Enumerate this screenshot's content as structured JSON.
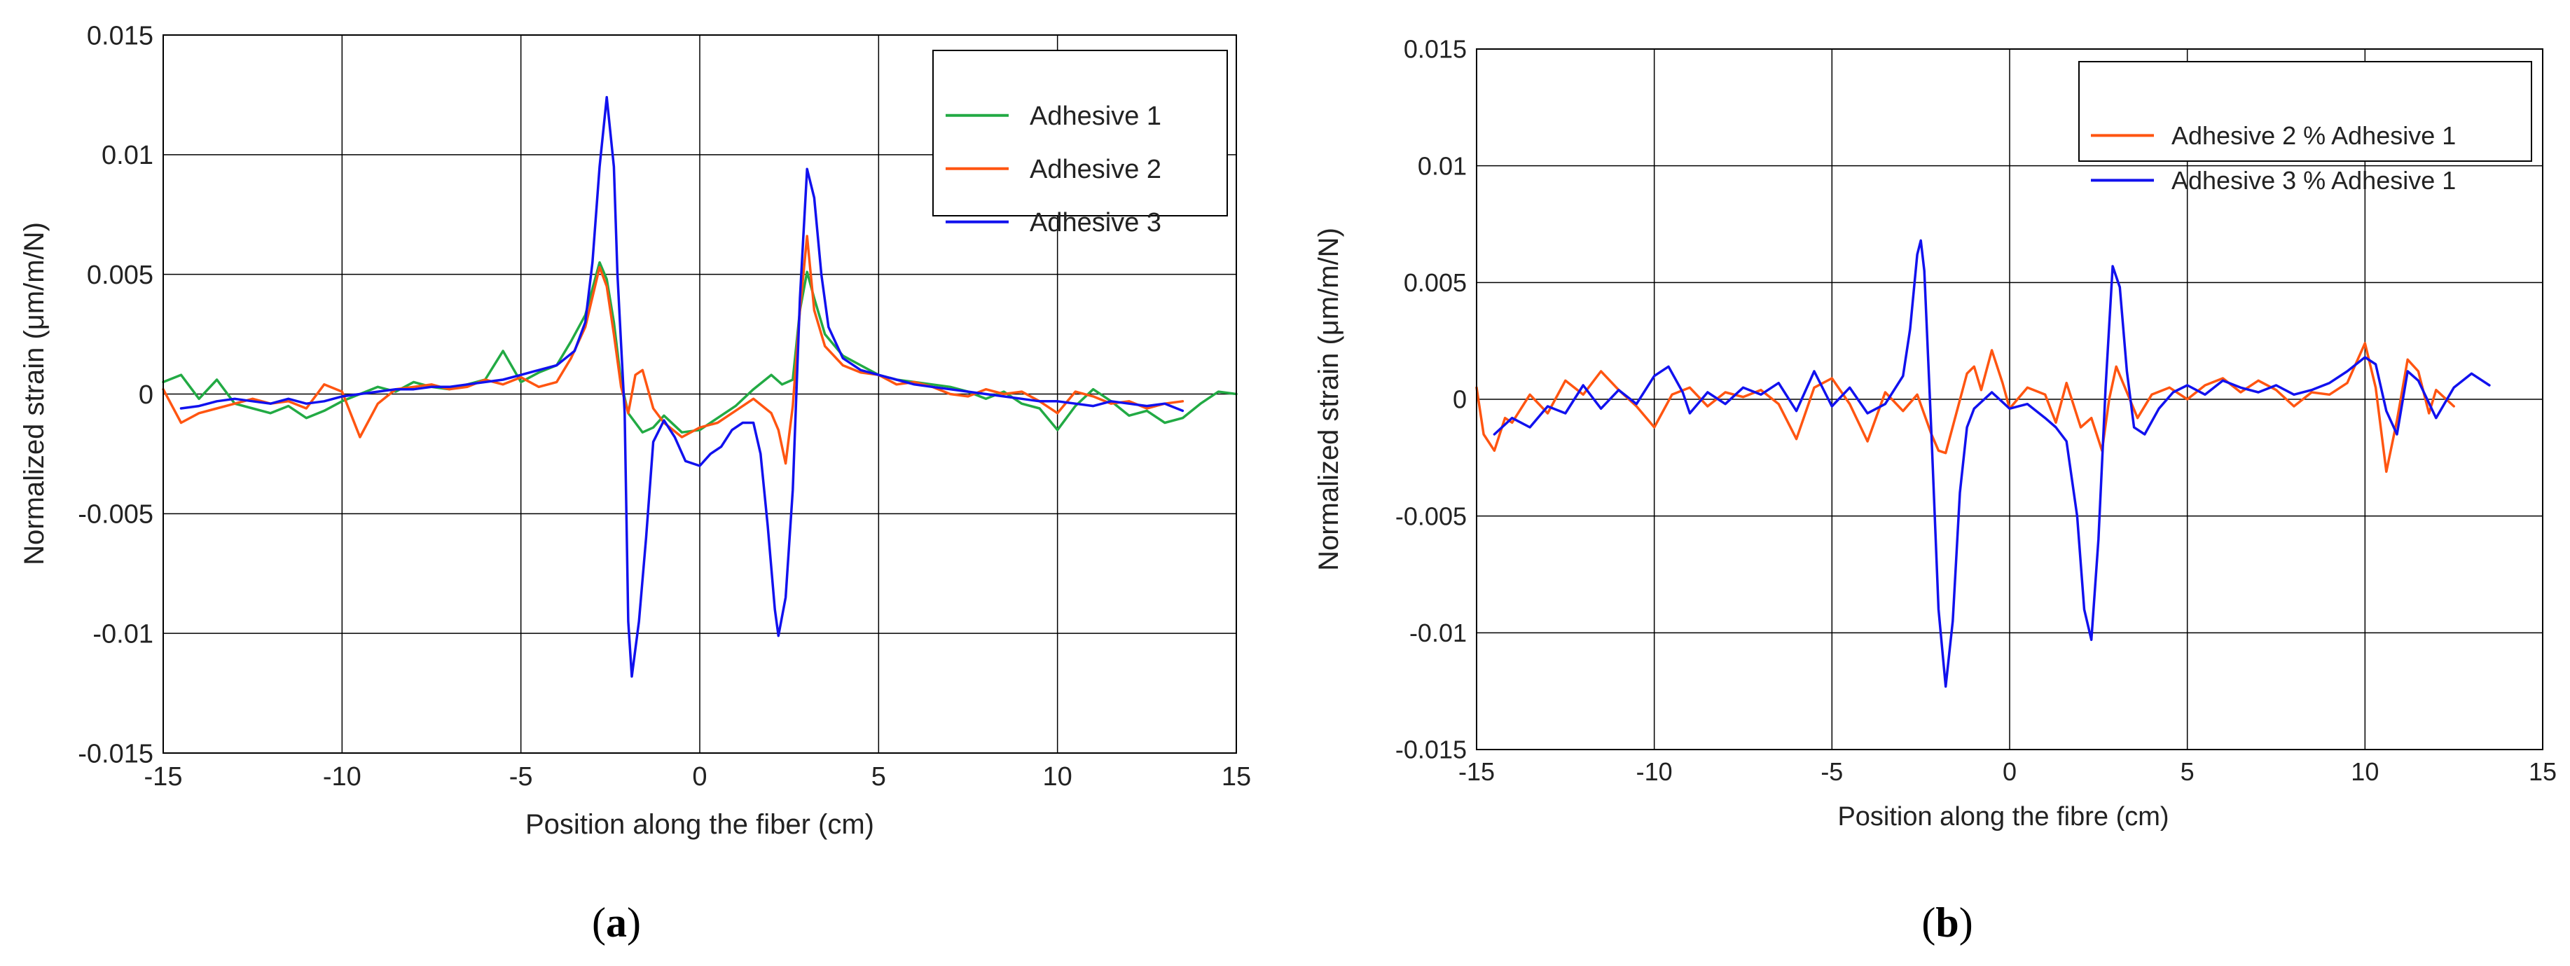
{
  "chart_data": [
    {
      "type": "line",
      "caption_letter": "a",
      "xlabel": "Position along the fiber (cm)",
      "ylabel": "Normalized strain (μm/m/N)",
      "xlim": [
        -15,
        15
      ],
      "ylim": [
        -0.015,
        0.015
      ],
      "xticks": [
        -15,
        -10,
        -5,
        0,
        5,
        10,
        15
      ],
      "xtick_labels": [
        "-15",
        "-10",
        "-5",
        "0",
        "5",
        "10",
        "15"
      ],
      "yticks": [
        0.015,
        0.01,
        0.005,
        0,
        -0.005,
        -0.01,
        -0.015
      ],
      "ytick_labels": [
        "0.015",
        "0.01",
        "0.005",
        "0",
        "-0.005",
        "-0.01",
        "-0.015"
      ],
      "grid": true,
      "legend_position": "top-right",
      "series": [
        {
          "name": "Adhesive 1",
          "color": "#22aa44",
          "x": [
            -15,
            -14.5,
            -14,
            -13.5,
            -13,
            -12.5,
            -12,
            -11.5,
            -11,
            -10.5,
            -10,
            -9.5,
            -9,
            -8.5,
            -8,
            -7.5,
            -7,
            -6.5,
            -6,
            -5.5,
            -5,
            -4.5,
            -4,
            -3.6,
            -3.2,
            -2.8,
            -2.6,
            -2.4,
            -2.2,
            -2,
            -1.8,
            -1.6,
            -1.3,
            -1,
            -0.5,
            0,
            0.5,
            1,
            1.5,
            2,
            2.3,
            2.6,
            2.8,
            3,
            3.2,
            3.5,
            4,
            4.5,
            5,
            5.5,
            6,
            6.5,
            7,
            7.5,
            8,
            8.5,
            9,
            9.5,
            10,
            10.5,
            11,
            11.5,
            12,
            12.5,
            13,
            13.5,
            14,
            14.5,
            15
          ],
          "y": [
            0.0005,
            0.0008,
            -0.0002,
            0.0006,
            -0.0004,
            -0.0006,
            -0.0008,
            -0.0005,
            -0.001,
            -0.0007,
            -0.0003,
            0,
            0.0003,
            0.0001,
            0.0005,
            0.0003,
            0.0002,
            0.0004,
            0.0006,
            0.0018,
            0.0005,
            0.0009,
            0.0012,
            0.0022,
            0.0033,
            0.0055,
            0.0048,
            0.003,
            0.0005,
            -0.0008,
            -0.0012,
            -0.0016,
            -0.0014,
            -0.0009,
            -0.0016,
            -0.0015,
            -0.001,
            -0.0005,
            0.0002,
            0.0008,
            0.0004,
            0.0006,
            0.0035,
            0.0051,
            0.004,
            0.0025,
            0.0016,
            0.0012,
            0.0008,
            0.0006,
            0.0005,
            0.0004,
            0.0003,
            0.0001,
            -0.0002,
            0.0001,
            -0.0004,
            -0.0006,
            -0.0015,
            -0.0005,
            0.0002,
            -0.0003,
            -0.0009,
            -0.0007,
            -0.0012,
            -0.001,
            -0.0004,
            0.0001,
            0
          ]
        },
        {
          "name": "Adhesive 2",
          "color": "#ff5511",
          "x": [
            -15,
            -14.5,
            -14,
            -13.5,
            -13,
            -12.5,
            -12,
            -11.5,
            -11,
            -10.5,
            -10,
            -9.5,
            -9,
            -8.5,
            -8,
            -7.5,
            -7,
            -6.5,
            -6,
            -5.5,
            -5,
            -4.5,
            -4,
            -3.6,
            -3.2,
            -2.8,
            -2.6,
            -2.4,
            -2.2,
            -2,
            -1.8,
            -1.6,
            -1.3,
            -1,
            -0.5,
            0,
            0.5,
            1,
            1.5,
            2,
            2.2,
            2.4,
            2.6,
            2.8,
            3,
            3.2,
            3.5,
            4,
            4.5,
            5,
            5.5,
            6,
            6.5,
            7,
            7.5,
            8,
            8.5,
            9,
            9.5,
            10,
            10.5,
            11,
            11.5,
            12,
            12.5,
            13,
            13.5
          ],
          "y": [
            0.0002,
            -0.0012,
            -0.0008,
            -0.0006,
            -0.0004,
            -0.0002,
            -0.0004,
            -0.0003,
            -0.0006,
            0.0004,
            0.0001,
            -0.0018,
            -0.0004,
            0.0002,
            0.0003,
            0.0004,
            0.0002,
            0.0003,
            0.0006,
            0.0004,
            0.0007,
            0.0003,
            0.0005,
            0.0015,
            0.0028,
            0.0053,
            0.0045,
            0.0025,
            0.0003,
            -0.0008,
            0.0008,
            0.001,
            -0.0006,
            -0.0012,
            -0.0018,
            -0.0014,
            -0.0012,
            -0.0007,
            -0.0002,
            -0.0008,
            -0.0015,
            -0.0029,
            -0.0005,
            0.0035,
            0.0066,
            0.0035,
            0.002,
            0.0012,
            0.0009,
            0.0008,
            0.0004,
            0.0005,
            0.0003,
            0,
            -0.0001,
            0.0002,
            0,
            0.0001,
            -0.0003,
            -0.0008,
            0.0001,
            -0.0001,
            -0.0004,
            -0.0003,
            -0.0006,
            -0.0004,
            -0.0003
          ]
        },
        {
          "name": "Adhesive 3",
          "color": "#1111ee",
          "x": [
            -14.5,
            -14,
            -13.5,
            -13,
            -12.5,
            -12,
            -11.5,
            -11,
            -10.5,
            -10,
            -9.5,
            -9,
            -8.5,
            -8,
            -7.5,
            -7,
            -6.5,
            -6,
            -5.5,
            -5,
            -4.5,
            -4,
            -3.5,
            -3.2,
            -3,
            -2.8,
            -2.6,
            -2.4,
            -2.3,
            -2.1,
            -2,
            -1.9,
            -1.7,
            -1.5,
            -1.3,
            -1,
            -0.7,
            -0.4,
            0,
            0.3,
            0.6,
            0.9,
            1.2,
            1.5,
            1.7,
            1.9,
            2.1,
            2.2,
            2.4,
            2.6,
            2.8,
            3,
            3.2,
            3.4,
            3.6,
            4,
            4.5,
            5,
            5.5,
            6,
            6.5,
            7,
            7.5,
            8,
            8.5,
            9,
            9.5,
            10,
            10.5,
            11,
            11.5,
            12,
            12.5,
            13,
            13.5
          ],
          "y": [
            -0.0006,
            -0.0005,
            -0.0003,
            -0.0002,
            -0.0003,
            -0.0004,
            -0.0002,
            -0.0004,
            -0.0003,
            -0.0001,
            0,
            0.0001,
            0.0002,
            0.0002,
            0.0003,
            0.0003,
            0.0004,
            0.0005,
            0.0006,
            0.0008,
            0.001,
            0.0012,
            0.0018,
            0.003,
            0.0055,
            0.0095,
            0.0124,
            0.0095,
            0.005,
            -0.0008,
            -0.0095,
            -0.0118,
            -0.0095,
            -0.006,
            -0.002,
            -0.0011,
            -0.0018,
            -0.0028,
            -0.003,
            -0.0025,
            -0.0022,
            -0.0015,
            -0.0012,
            -0.0012,
            -0.0025,
            -0.0055,
            -0.009,
            -0.0101,
            -0.0085,
            -0.004,
            0.004,
            0.0094,
            0.0082,
            0.005,
            0.0028,
            0.0015,
            0.001,
            0.0008,
            0.0006,
            0.0004,
            0.0003,
            0.0002,
            0.0001,
            0,
            -0.0001,
            -0.0002,
            -0.0003,
            -0.0003,
            -0.0004,
            -0.0005,
            -0.0003,
            -0.0004,
            -0.0005,
            -0.0004,
            -0.0007
          ]
        }
      ]
    },
    {
      "type": "line",
      "caption_letter": "b",
      "xlabel": "Position along the fibre (cm)",
      "ylabel": "Normalized strain (μm/m/N)",
      "xlim": [
        -15,
        15
      ],
      "ylim": [
        -0.015,
        0.015
      ],
      "xticks": [
        -15,
        -10,
        -5,
        0,
        5,
        10,
        15
      ],
      "xtick_labels": [
        "-15",
        "-10",
        "-5",
        "0",
        "5",
        "10",
        "15"
      ],
      "yticks": [
        0.015,
        0.01,
        0.005,
        0,
        -0.005,
        -0.01,
        -0.015
      ],
      "ytick_labels": [
        "0.015",
        "0.01",
        "0.005",
        "0",
        "-0.005",
        "-0.01",
        "-0.015"
      ],
      "grid": true,
      "legend_position": "top-right",
      "series": [
        {
          "name": "Adhesive 2 % Adhesive 1",
          "color": "#ff5511",
          "x": [
            -15,
            -14.8,
            -14.5,
            -14.2,
            -14,
            -13.5,
            -13,
            -12.5,
            -12,
            -11.5,
            -11,
            -10.5,
            -10,
            -9.5,
            -9,
            -8.5,
            -8,
            -7.5,
            -7,
            -6.5,
            -6,
            -5.5,
            -5,
            -4.5,
            -4,
            -3.5,
            -3,
            -2.6,
            -2.2,
            -2,
            -1.8,
            -1.5,
            -1.2,
            -1,
            -0.8,
            -0.5,
            -0.2,
            0,
            0.5,
            1,
            1.3,
            1.6,
            2,
            2.3,
            2.6,
            2.8,
            3,
            3.3,
            3.6,
            4,
            4.5,
            5,
            5.5,
            6,
            6.5,
            7,
            7.5,
            8,
            8.5,
            9,
            9.5,
            10,
            10.3,
            10.6,
            10.9,
            11.2,
            11.5,
            11.8,
            12,
            12.5
          ],
          "y": [
            0.0005,
            -0.0015,
            -0.0022,
            -0.0008,
            -0.001,
            0.0002,
            -0.0006,
            0.0008,
            0.0002,
            0.0012,
            0.0004,
            -0.0003,
            -0.0012,
            0.0002,
            0.0005,
            -0.0003,
            0.0003,
            0.0001,
            0.0004,
            -0.0002,
            -0.0017,
            0.0005,
            0.0009,
            -0.0002,
            -0.0018,
            0.0003,
            -0.0005,
            0.0002,
            -0.0015,
            -0.0022,
            -0.0023,
            -0.0006,
            0.0011,
            0.0014,
            0.0004,
            0.0021,
            0.0007,
            -0.0004,
            0.0005,
            0.0002,
            -0.001,
            0.0007,
            -0.0012,
            -0.0008,
            -0.0022,
            0,
            0.0014,
            0.0003,
            -0.0008,
            0.0002,
            0.0005,
            0,
            0.0006,
            0.0009,
            0.0003,
            0.0008,
            0.0004,
            -0.0003,
            0.0003,
            0.0002,
            0.0007,
            0.0024,
            0.0005,
            -0.0031,
            -0.0009,
            0.0017,
            0.0012,
            -0.0006,
            0.0004,
            -0.0003
          ]
        },
        {
          "name": "Adhesive 3 % Adhesive 1",
          "color": "#1111ee",
          "x": [
            -14.5,
            -14,
            -13.5,
            -13,
            -12.5,
            -12,
            -11.5,
            -11,
            -10.5,
            -10,
            -9.6,
            -9.2,
            -9,
            -8.5,
            -8,
            -7.5,
            -7,
            -6.5,
            -6,
            -5.5,
            -5,
            -4.5,
            -4,
            -3.5,
            -3,
            -2.8,
            -2.6,
            -2.5,
            -2.4,
            -2.2,
            -2,
            -1.8,
            -1.6,
            -1.4,
            -1.2,
            -1,
            -0.5,
            0,
            0.5,
            1,
            1.3,
            1.6,
            1.9,
            2.1,
            2.3,
            2.5,
            2.7,
            2.9,
            3.1,
            3.3,
            3.5,
            3.8,
            4.2,
            4.6,
            5,
            5.5,
            6,
            6.5,
            7,
            7.5,
            8,
            8.5,
            9,
            9.5,
            10,
            10.3,
            10.6,
            10.9,
            11.2,
            11.5,
            12,
            12.5,
            13,
            13.5
          ],
          "y": [
            -0.0015,
            -0.0008,
            -0.0012,
            -0.0003,
            -0.0006,
            0.0006,
            -0.0004,
            0.0004,
            -0.0002,
            0.001,
            0.0014,
            0.0003,
            -0.0006,
            0.0003,
            -0.0002,
            0.0005,
            0.0002,
            0.0007,
            -0.0005,
            0.0012,
            -0.0003,
            0.0005,
            -0.0006,
            -0.0002,
            0.001,
            0.003,
            0.0062,
            0.0068,
            0.0055,
            -0.0015,
            -0.009,
            -0.0123,
            -0.0095,
            -0.004,
            -0.0012,
            -0.0004,
            0.0003,
            -0.0004,
            -0.0002,
            -0.0008,
            -0.0012,
            -0.0018,
            -0.005,
            -0.009,
            -0.0103,
            -0.006,
            0.0005,
            0.0057,
            0.0048,
            0.0012,
            -0.0012,
            -0.0015,
            -0.0004,
            0.0003,
            0.0006,
            0.0002,
            0.0008,
            0.0005,
            0.0003,
            0.0006,
            0.0002,
            0.0004,
            0.0007,
            0.0012,
            0.0018,
            0.0015,
            -0.0005,
            -0.0015,
            0.0012,
            0.0008,
            -0.0008,
            0.0005,
            0.0011,
            0.0006
          ]
        }
      ]
    }
  ]
}
